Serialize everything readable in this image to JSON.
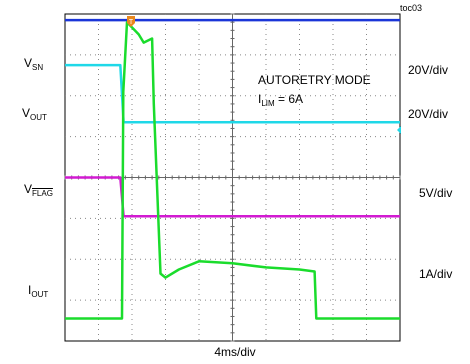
{
  "figure_id": "toc03",
  "chart_data": {
    "type": "line",
    "annotation_mode": "AUTORETRY MODE",
    "annotation_ilim": "6A",
    "xlabel": "4ms/div",
    "x_divisions": 10,
    "y_divisions": 8,
    "grid": true,
    "channels": [
      {
        "name": "VSN",
        "label_main": "V",
        "label_sub": "SN",
        "scale": "20V/div",
        "color": "#1a35d8",
        "points": [
          [
            0,
            0.15
          ],
          [
            10,
            0.15
          ]
        ]
      },
      {
        "name": "VOUT",
        "label_main": "V",
        "label_sub": "OUT",
        "scale": "20V/div",
        "color": "#1fd8e8",
        "points": [
          [
            0,
            1.25
          ],
          [
            1.65,
            1.25
          ],
          [
            1.75,
            2.65
          ],
          [
            10,
            2.65
          ]
        ]
      },
      {
        "name": "VFLAG",
        "label_main": "V",
        "label_sub": "FLAG",
        "scale": "5V/div",
        "color": "#d21ad2",
        "points": [
          [
            0,
            4.0
          ],
          [
            1.65,
            4.0
          ],
          [
            1.75,
            4.95
          ],
          [
            10,
            4.95
          ]
        ]
      },
      {
        "name": "IOUT",
        "label_main": "I",
        "label_sub": "OUT",
        "scale": "1A/div",
        "color": "#1adc2c",
        "points": [
          [
            0,
            7.45
          ],
          [
            1.7,
            7.45
          ],
          [
            1.74,
            1.9
          ],
          [
            1.85,
            0.2
          ],
          [
            2.2,
            0.5
          ],
          [
            2.35,
            0.7
          ],
          [
            2.6,
            0.6
          ],
          [
            2.65,
            2.2
          ],
          [
            2.85,
            6.35
          ],
          [
            3.0,
            6.45
          ],
          [
            3.4,
            6.25
          ],
          [
            4.0,
            6.05
          ],
          [
            5.0,
            6.1
          ],
          [
            6.0,
            6.2
          ],
          [
            7.0,
            6.25
          ],
          [
            7.45,
            6.3
          ],
          [
            7.5,
            7.45
          ],
          [
            10,
            7.45
          ]
        ]
      }
    ]
  }
}
